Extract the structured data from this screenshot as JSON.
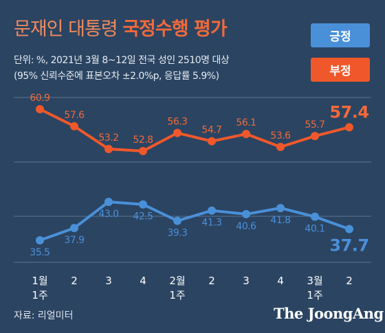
{
  "header": {
    "title_part1": "문재인 대통령",
    "title_part2": "국정수행 평가",
    "subtitle_line1": "단위: %, 2021년 3월 8~12일 전국 성인 2510명 대상",
    "subtitle_line2": "(95% 신뢰수준에 표본오차 ±2.0%p, 응답률 5.9%)"
  },
  "legend": {
    "positive": "긍정",
    "negative": "부정"
  },
  "footer": {
    "source": "자료: 리얼미터",
    "brand": "The JoongAng"
  },
  "colors": {
    "background": "#2b4462",
    "positive": "#4a90d9",
    "negative": "#f0582b"
  },
  "chart_data": {
    "type": "line",
    "categories": [
      {
        "line1": "1월",
        "line2": "1주"
      },
      {
        "line1": "2",
        "line2": ""
      },
      {
        "line1": "3",
        "line2": ""
      },
      {
        "line1": "4",
        "line2": ""
      },
      {
        "line1": "2월",
        "line2": "1주"
      },
      {
        "line1": "2",
        "line2": ""
      },
      {
        "line1": "3",
        "line2": ""
      },
      {
        "line1": "4",
        "line2": ""
      },
      {
        "line1": "3월",
        "line2": "1주"
      },
      {
        "line1": "2",
        "line2": ""
      }
    ],
    "series": [
      {
        "name": "부정",
        "values": [
          60.9,
          57.6,
          53.2,
          52.8,
          56.3,
          54.7,
          56.1,
          53.6,
          55.7,
          57.4
        ],
        "labels": [
          "60.9",
          "57.6",
          "53.2",
          "52.8",
          "56.3",
          "54.7",
          "56.1",
          "53.6",
          "55.7",
          "57.4"
        ]
      },
      {
        "name": "긍정",
        "values": [
          35.5,
          37.9,
          43.0,
          42.5,
          39.3,
          41.3,
          40.6,
          41.8,
          40.1,
          37.7
        ],
        "labels": [
          "35.5",
          "37.9",
          "43.0",
          "42.5",
          "39.3",
          "41.3",
          "40.6",
          "41.8",
          "40.1",
          "37.7"
        ]
      }
    ],
    "grid": true,
    "legend_position": "top-right"
  }
}
